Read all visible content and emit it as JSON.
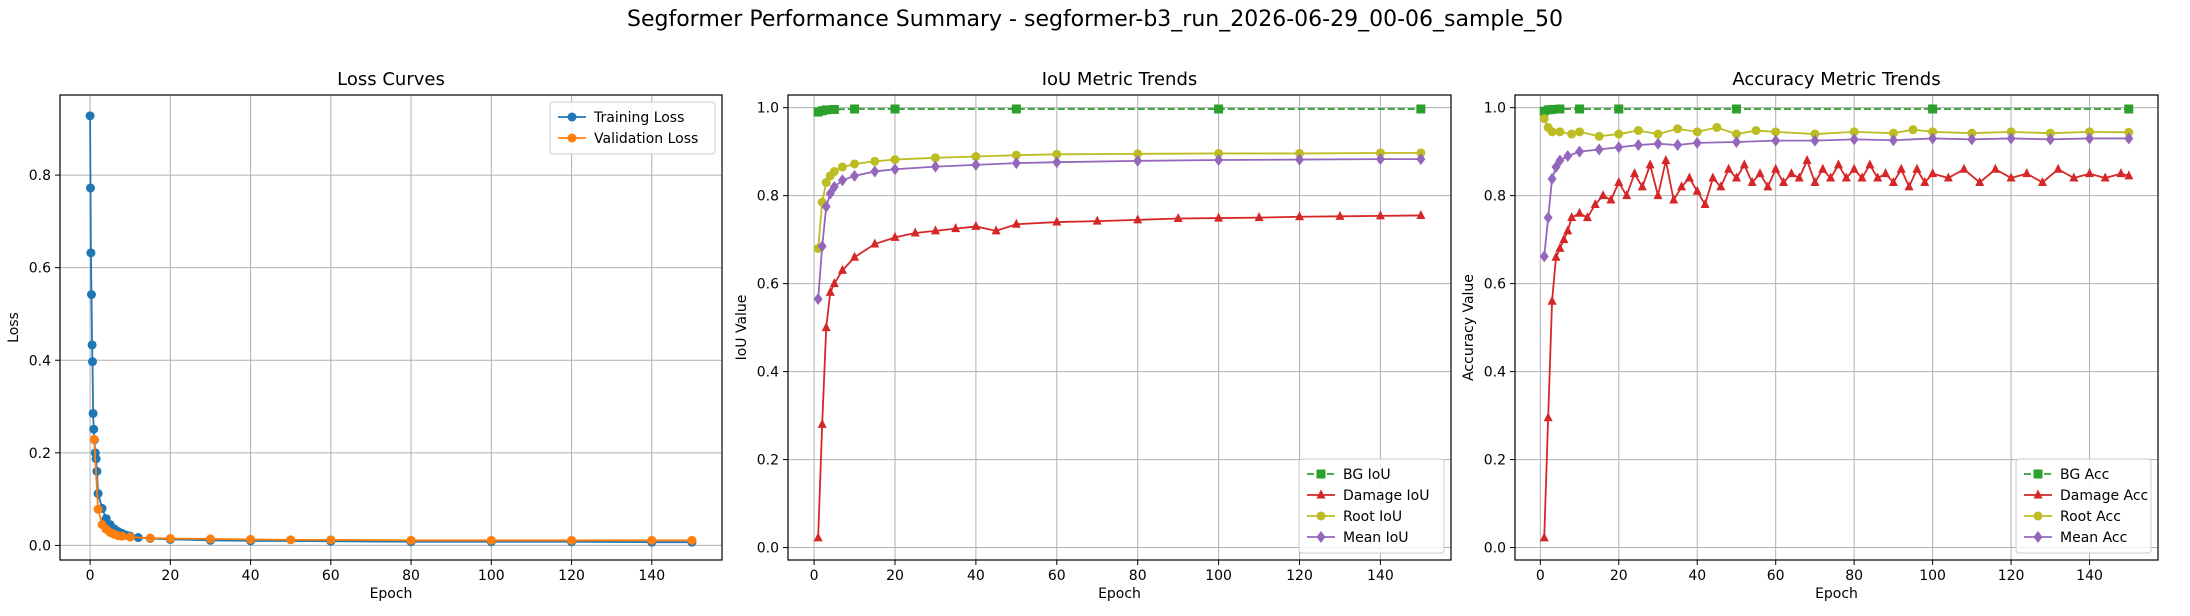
{
  "figure": {
    "title": "Segformer Performance Summary - segformer-b3_run_2026-06-29_00-06_sample_50"
  },
  "chart_data": [
    {
      "type": "line",
      "title": "Loss Curves",
      "xlabel": "Epoch",
      "ylabel": "Loss",
      "xlim": [
        -7.5,
        157.5
      ],
      "ylim": [
        -0.0315,
        0.973
      ],
      "xticks": [
        0,
        20,
        40,
        60,
        80,
        100,
        120,
        140
      ],
      "yticks": [
        0.0,
        0.2,
        0.4,
        0.6,
        0.8
      ],
      "grid": true,
      "legend": "top-right",
      "series": [
        {
          "name": "Training Loss",
          "color": "#1f77b4",
          "marker": "circle",
          "dash": "solid",
          "points": [
            [
              0,
              0.928
            ],
            [
              0.1,
              0.772
            ],
            [
              0.2,
              0.632
            ],
            [
              0.35,
              0.542
            ],
            [
              0.5,
              0.433
            ],
            [
              0.6,
              0.397
            ],
            [
              0.75,
              0.285
            ],
            [
              0.9,
              0.251
            ],
            [
              1.1,
              0.228
            ],
            [
              1.3,
              0.2
            ],
            [
              1.5,
              0.187
            ],
            [
              1.7,
              0.16
            ],
            [
              2,
              0.112
            ],
            [
              3,
              0.08
            ],
            [
              4,
              0.058
            ],
            [
              5,
              0.045
            ],
            [
              6,
              0.036
            ],
            [
              7,
              0.03
            ],
            [
              8,
              0.026
            ],
            [
              9,
              0.022
            ],
            [
              10,
              0.02
            ],
            [
              12,
              0.017
            ],
            [
              15,
              0.015
            ],
            [
              20,
              0.013
            ],
            [
              30,
              0.011
            ],
            [
              40,
              0.01
            ],
            [
              60,
              0.009
            ],
            [
              80,
              0.008
            ],
            [
              100,
              0.008
            ],
            [
              120,
              0.008
            ],
            [
              140,
              0.007
            ],
            [
              150,
              0.007
            ]
          ]
        },
        {
          "name": "Validation Loss",
          "color": "#ff7f0e",
          "marker": "circle",
          "dash": "solid",
          "points": [
            [
              1,
              0.229
            ],
            [
              2,
              0.078
            ],
            [
              3,
              0.045
            ],
            [
              4,
              0.035
            ],
            [
              5,
              0.028
            ],
            [
              6,
              0.024
            ],
            [
              7,
              0.021
            ],
            [
              8,
              0.02
            ],
            [
              10,
              0.018
            ],
            [
              15,
              0.016
            ],
            [
              20,
              0.015
            ],
            [
              30,
              0.014
            ],
            [
              40,
              0.013
            ],
            [
              50,
              0.012
            ],
            [
              60,
              0.012
            ],
            [
              80,
              0.011
            ],
            [
              100,
              0.011
            ],
            [
              120,
              0.011
            ],
            [
              140,
              0.011
            ],
            [
              150,
              0.011
            ]
          ]
        }
      ]
    },
    {
      "type": "line",
      "title": "IoU Metric Trends",
      "xlabel": "Epoch",
      "ylabel": "IoU Value",
      "xlim": [
        -6.45,
        157.45
      ],
      "ylim": [
        -0.0283,
        1.0288
      ],
      "xticks": [
        0,
        20,
        40,
        60,
        80,
        100,
        120,
        140
      ],
      "yticks": [
        0.0,
        0.2,
        0.4,
        0.6,
        0.8,
        1.0
      ],
      "grid": true,
      "legend": "bottom-right",
      "series": [
        {
          "name": "BG IoU",
          "color": "#2ca02c",
          "marker": "square",
          "dash": "dashed",
          "points": [
            [
              1,
              0.99
            ],
            [
              2,
              0.993
            ],
            [
              3,
              0.995
            ],
            [
              5,
              0.996
            ],
            [
              10,
              0.997
            ],
            [
              20,
              0.997
            ],
            [
              50,
              0.997
            ],
            [
              100,
              0.997
            ],
            [
              150,
              0.997
            ]
          ]
        },
        {
          "name": "Damage IoU",
          "color": "#d62728",
          "marker": "triangle",
          "dash": "solid",
          "points": [
            [
              1,
              0.022
            ],
            [
              2,
              0.28
            ],
            [
              3,
              0.5
            ],
            [
              4,
              0.58
            ],
            [
              5,
              0.6
            ],
            [
              7,
              0.63
            ],
            [
              10,
              0.66
            ],
            [
              15,
              0.69
            ],
            [
              20,
              0.705
            ],
            [
              25,
              0.715
            ],
            [
              30,
              0.72
            ],
            [
              35,
              0.725
            ],
            [
              40,
              0.73
            ],
            [
              45,
              0.72
            ],
            [
              50,
              0.735
            ],
            [
              60,
              0.74
            ],
            [
              70,
              0.742
            ],
            [
              80,
              0.745
            ],
            [
              90,
              0.748
            ],
            [
              100,
              0.749
            ],
            [
              110,
              0.75
            ],
            [
              120,
              0.752
            ],
            [
              130,
              0.753
            ],
            [
              140,
              0.754
            ],
            [
              150,
              0.755
            ]
          ]
        },
        {
          "name": "Root IoU",
          "color": "#bcbd22",
          "marker": "circle",
          "dash": "solid",
          "points": [
            [
              1,
              0.68
            ],
            [
              2,
              0.785
            ],
            [
              3,
              0.83
            ],
            [
              4,
              0.845
            ],
            [
              5,
              0.855
            ],
            [
              7,
              0.865
            ],
            [
              10,
              0.872
            ],
            [
              15,
              0.878
            ],
            [
              20,
              0.882
            ],
            [
              30,
              0.886
            ],
            [
              40,
              0.889
            ],
            [
              50,
              0.892
            ],
            [
              60,
              0.894
            ],
            [
              80,
              0.895
            ],
            [
              100,
              0.896
            ],
            [
              120,
              0.896
            ],
            [
              140,
              0.897
            ],
            [
              150,
              0.897
            ]
          ]
        },
        {
          "name": "Mean IoU",
          "color": "#9467bd",
          "marker": "diamond",
          "dash": "solid",
          "points": [
            [
              1,
              0.565
            ],
            [
              2,
              0.685
            ],
            [
              3,
              0.775
            ],
            [
              4,
              0.805
            ],
            [
              5,
              0.82
            ],
            [
              7,
              0.835
            ],
            [
              10,
              0.845
            ],
            [
              15,
              0.855
            ],
            [
              20,
              0.86
            ],
            [
              30,
              0.866
            ],
            [
              40,
              0.87
            ],
            [
              50,
              0.874
            ],
            [
              60,
              0.876
            ],
            [
              80,
              0.879
            ],
            [
              100,
              0.881
            ],
            [
              120,
              0.882
            ],
            [
              140,
              0.883
            ],
            [
              150,
              0.883
            ]
          ]
        }
      ]
    },
    {
      "type": "line",
      "title": "Accuracy Metric Trends",
      "xlabel": "Epoch",
      "ylabel": "Accuracy Value",
      "xlim": [
        -6.45,
        157.45
      ],
      "ylim": [
        -0.0283,
        1.0288
      ],
      "xticks": [
        0,
        20,
        40,
        60,
        80,
        100,
        120,
        140
      ],
      "yticks": [
        0.0,
        0.2,
        0.4,
        0.6,
        0.8,
        1.0
      ],
      "grid": true,
      "legend": "bottom-right",
      "series": [
        {
          "name": "BG Acc",
          "color": "#2ca02c",
          "marker": "square",
          "dash": "dashed",
          "points": [
            [
              1,
              0.992
            ],
            [
              2,
              0.995
            ],
            [
              3,
              0.996
            ],
            [
              5,
              0.997
            ],
            [
              10,
              0.997
            ],
            [
              20,
              0.997
            ],
            [
              50,
              0.997
            ],
            [
              100,
              0.997
            ],
            [
              150,
              0.997
            ]
          ]
        },
        {
          "name": "Damage Acc",
          "color": "#d62728",
          "marker": "triangle",
          "dash": "solid",
          "points": [
            [
              1,
              0.022
            ],
            [
              2,
              0.295
            ],
            [
              3,
              0.56
            ],
            [
              4,
              0.66
            ],
            [
              5,
              0.68
            ],
            [
              6,
              0.7
            ],
            [
              7,
              0.72
            ],
            [
              8,
              0.75
            ],
            [
              10,
              0.76
            ],
            [
              12,
              0.75
            ],
            [
              14,
              0.78
            ],
            [
              16,
              0.8
            ],
            [
              18,
              0.79
            ],
            [
              20,
              0.83
            ],
            [
              22,
              0.8
            ],
            [
              24,
              0.85
            ],
            [
              26,
              0.82
            ],
            [
              28,
              0.87
            ],
            [
              30,
              0.8
            ],
            [
              32,
              0.88
            ],
            [
              34,
              0.79
            ],
            [
              36,
              0.82
            ],
            [
              38,
              0.84
            ],
            [
              40,
              0.81
            ],
            [
              42,
              0.78
            ],
            [
              44,
              0.84
            ],
            [
              46,
              0.82
            ],
            [
              48,
              0.86
            ],
            [
              50,
              0.84
            ],
            [
              52,
              0.87
            ],
            [
              54,
              0.83
            ],
            [
              56,
              0.85
            ],
            [
              58,
              0.82
            ],
            [
              60,
              0.86
            ],
            [
              62,
              0.83
            ],
            [
              64,
              0.85
            ],
            [
              66,
              0.84
            ],
            [
              68,
              0.88
            ],
            [
              70,
              0.83
            ],
            [
              72,
              0.86
            ],
            [
              74,
              0.84
            ],
            [
              76,
              0.87
            ],
            [
              78,
              0.84
            ],
            [
              80,
              0.86
            ],
            [
              82,
              0.84
            ],
            [
              84,
              0.87
            ],
            [
              86,
              0.84
            ],
            [
              88,
              0.85
            ],
            [
              90,
              0.83
            ],
            [
              92,
              0.86
            ],
            [
              94,
              0.82
            ],
            [
              96,
              0.86
            ],
            [
              98,
              0.83
            ],
            [
              100,
              0.85
            ],
            [
              104,
              0.84
            ],
            [
              108,
              0.86
            ],
            [
              112,
              0.83
            ],
            [
              116,
              0.86
            ],
            [
              120,
              0.84
            ],
            [
              124,
              0.85
            ],
            [
              128,
              0.83
            ],
            [
              132,
              0.86
            ],
            [
              136,
              0.84
            ],
            [
              140,
              0.85
            ],
            [
              144,
              0.84
            ],
            [
              148,
              0.85
            ],
            [
              150,
              0.845
            ]
          ]
        },
        {
          "name": "Root Acc",
          "color": "#bcbd22",
          "marker": "circle",
          "dash": "solid",
          "points": [
            [
              1,
              0.975
            ],
            [
              2,
              0.955
            ],
            [
              3,
              0.945
            ],
            [
              5,
              0.945
            ],
            [
              8,
              0.94
            ],
            [
              10,
              0.945
            ],
            [
              15,
              0.935
            ],
            [
              20,
              0.94
            ],
            [
              25,
              0.948
            ],
            [
              30,
              0.94
            ],
            [
              35,
              0.952
            ],
            [
              40,
              0.945
            ],
            [
              45,
              0.955
            ],
            [
              50,
              0.94
            ],
            [
              55,
              0.948
            ],
            [
              60,
              0.945
            ],
            [
              70,
              0.94
            ],
            [
              80,
              0.945
            ],
            [
              90,
              0.942
            ],
            [
              95,
              0.95
            ],
            [
              100,
              0.945
            ],
            [
              110,
              0.942
            ],
            [
              120,
              0.945
            ],
            [
              130,
              0.942
            ],
            [
              140,
              0.945
            ],
            [
              150,
              0.944
            ]
          ]
        },
        {
          "name": "Mean Acc",
          "color": "#9467bd",
          "marker": "diamond",
          "dash": "solid",
          "points": [
            [
              1,
              0.662
            ],
            [
              2,
              0.75
            ],
            [
              3,
              0.838
            ],
            [
              4,
              0.865
            ],
            [
              5,
              0.88
            ],
            [
              7,
              0.89
            ],
            [
              10,
              0.9
            ],
            [
              15,
              0.905
            ],
            [
              20,
              0.91
            ],
            [
              25,
              0.915
            ],
            [
              30,
              0.918
            ],
            [
              35,
              0.915
            ],
            [
              40,
              0.92
            ],
            [
              50,
              0.922
            ],
            [
              60,
              0.925
            ],
            [
              70,
              0.925
            ],
            [
              80,
              0.928
            ],
            [
              90,
              0.926
            ],
            [
              100,
              0.93
            ],
            [
              110,
              0.928
            ],
            [
              120,
              0.93
            ],
            [
              130,
              0.928
            ],
            [
              140,
              0.93
            ],
            [
              150,
              0.93
            ]
          ]
        }
      ]
    }
  ]
}
